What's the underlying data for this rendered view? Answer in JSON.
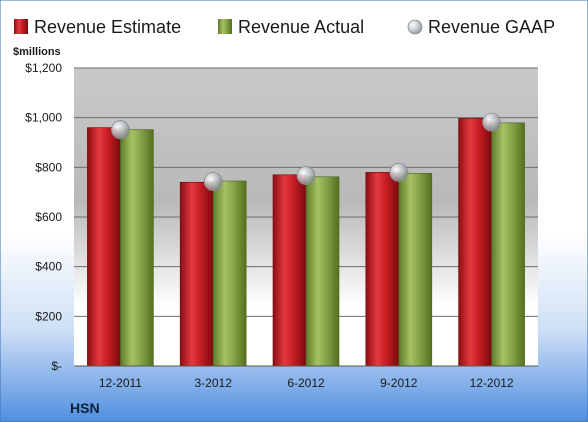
{
  "chart_data": {
    "type": "bar",
    "title": "",
    "ylabel": "$millions",
    "xlabel": "",
    "company": "HSN",
    "categories": [
      "12-2011",
      "3-2012",
      "6-2012",
      "9-2012",
      "12-2012"
    ],
    "ylim": [
      0,
      1200
    ],
    "yticks": [
      0,
      200,
      400,
      600,
      800,
      1000,
      1200
    ],
    "ytick_labels": [
      "$-",
      "$200",
      "$400",
      "$600",
      "$800",
      "$1,000",
      "$1,200"
    ],
    "grid": true,
    "legend_position": "top",
    "series": [
      {
        "name": "Revenue Estimate",
        "kind": "bar",
        "values": [
          960,
          740,
          770,
          780,
          997
        ],
        "color": "#d7262c"
      },
      {
        "name": "Revenue Actual",
        "kind": "bar",
        "values": [
          952,
          745,
          762,
          776,
          979
        ],
        "color": "#8aa84a"
      },
      {
        "name": "Revenue GAAP",
        "kind": "marker",
        "values": [
          952,
          743,
          767,
          780,
          982
        ],
        "color": "#bfc3c9"
      }
    ]
  }
}
